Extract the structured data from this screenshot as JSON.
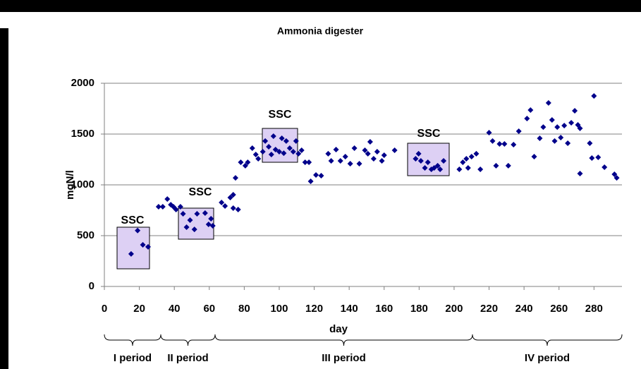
{
  "chart_data": {
    "type": "scatter",
    "title": "Ammonia digester",
    "x_label": "day",
    "y_label": "mgN/l",
    "x": [
      15.3,
      19,
      22,
      25,
      31,
      33.4,
      36,
      38,
      39.5,
      41,
      43.5,
      45,
      47,
      49,
      51.5,
      53,
      57.6,
      59.6,
      61,
      62,
      67,
      69,
      72,
      73.7,
      73.7,
      76.5,
      75,
      78,
      80.6,
      82,
      84.6,
      86.6,
      88,
      90.6,
      92,
      94,
      95.5,
      96.7,
      97.9,
      100,
      101.5,
      102.6,
      104,
      106,
      108,
      109.6,
      111,
      112.8,
      114.8,
      117,
      118,
      121,
      124,
      128,
      129.7,
      132.5,
      135,
      137.8,
      140.6,
      143,
      145.8,
      149,
      150.7,
      152,
      154,
      156,
      158.7,
      160,
      166,
      178,
      179.7,
      181,
      183.3,
      185,
      187,
      188.6,
      190.6,
      192,
      194,
      203,
      205,
      207,
      208,
      210,
      212.7,
      215,
      220,
      222,
      224,
      226,
      228.8,
      231,
      234,
      237,
      241.7,
      243.7,
      245.8,
      249,
      251,
      254,
      256,
      257.5,
      259,
      261,
      263,
      265,
      267,
      269,
      270.8,
      272,
      272,
      277.6,
      278.8,
      280,
      282.4,
      286,
      291.7,
      293
    ],
    "values": [
      320,
      550,
      410,
      390,
      785,
      785,
      860,
      805,
      785,
      757,
      785,
      715,
      583,
      653,
      562,
      715,
      722,
      611,
      667,
      597,
      826,
      792,
      875,
      903,
      771,
      757,
      1069,
      1222,
      1188,
      1222,
      1361,
      1299,
      1257,
      1326,
      1431,
      1375,
      1299,
      1479,
      1347,
      1326,
      1458,
      1312,
      1431,
      1361,
      1326,
      1431,
      1306,
      1340,
      1222,
      1222,
      1035,
      1097,
      1090,
      1306,
      1236,
      1347,
      1236,
      1278,
      1208,
      1361,
      1208,
      1340,
      1306,
      1424,
      1257,
      1326,
      1236,
      1292,
      1340,
      1257,
      1306,
      1236,
      1167,
      1222,
      1153,
      1167,
      1188,
      1153,
      1236,
      1153,
      1222,
      1257,
      1167,
      1278,
      1306,
      1153,
      1514,
      1431,
      1188,
      1403,
      1403,
      1188,
      1396,
      1528,
      1653,
      1736,
      1278,
      1458,
      1569,
      1806,
      1639,
      1431,
      1569,
      1465,
      1583,
      1410,
      1611,
      1729,
      1590,
      1556,
      1111,
      1410,
      1264,
      1875,
      1271,
      1174,
      1104,
      1069
    ],
    "color": "#00008b",
    "xlim": [
      0,
      296
    ],
    "xticks": [
      0,
      20,
      40,
      60,
      80,
      100,
      120,
      140,
      160,
      180,
      200,
      220,
      240,
      260,
      280
    ],
    "ylim": [
      0,
      2000
    ],
    "yticks": [
      0,
      500,
      1000,
      1500,
      2000
    ],
    "grid": true,
    "annotations": [
      "SSC",
      "SSC",
      "SSC",
      "SSC"
    ],
    "periods": [
      "I period",
      "II period",
      "III period",
      "IV period"
    ]
  }
}
